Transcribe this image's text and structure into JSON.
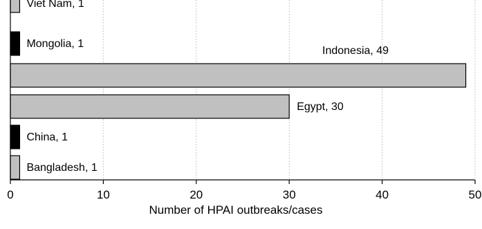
{
  "chart_data": {
    "type": "bar",
    "orientation": "horizontal",
    "title": "",
    "xlabel": "Number of HPAI outbreaks/cases",
    "ylabel": "",
    "xlim": [
      0,
      50
    ],
    "xticks": [
      0,
      10,
      20,
      30,
      40,
      50
    ],
    "grid": true,
    "legend": "none",
    "categories": [
      "Viet Nam",
      "Mongolia",
      "Indonesia",
      "Egypt",
      "China",
      "Bangladesh"
    ],
    "values": [
      1,
      1,
      49,
      30,
      1,
      1
    ],
    "labels": [
      "Viet Nam, 1",
      "Mongolia, 1",
      "Indonesia, 49",
      "Egypt, 30",
      "China, 1",
      "Bangladesh, 1"
    ],
    "bar_colors": [
      "#c0c0c0",
      "#000000",
      "#c0c0c0",
      "#c0c0c0",
      "#000000",
      "#c0c0c0"
    ]
  }
}
